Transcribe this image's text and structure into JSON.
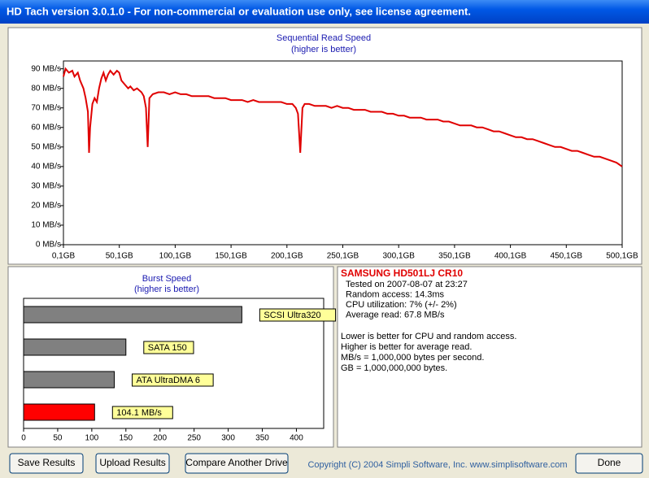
{
  "window": {
    "title": "HD Tach version 3.0.1.0  - For non-commercial or evaluation use only, see license agreement."
  },
  "chart_data": [
    {
      "type": "line",
      "title": "Sequential Read Speed",
      "subtitle": "(higher is better)",
      "x": [
        0.1,
        2,
        5,
        8,
        10,
        13,
        15,
        18,
        20,
        22,
        23,
        24,
        26,
        28,
        30,
        32,
        34,
        36,
        38,
        40,
        42,
        45,
        48,
        50,
        52,
        55,
        58,
        60,
        63,
        66,
        70,
        72,
        74,
        75.5,
        77,
        80,
        85,
        90,
        95,
        100,
        105,
        110,
        115,
        120,
        125,
        130,
        135,
        140,
        145,
        150,
        155,
        160,
        165,
        170,
        175,
        180,
        185,
        190,
        195,
        200,
        205,
        208,
        210,
        212,
        214,
        216,
        220,
        225,
        230,
        235,
        240,
        245,
        250,
        255,
        260,
        265,
        270,
        275,
        280,
        285,
        290,
        295,
        300,
        305,
        310,
        315,
        320,
        325,
        330,
        335,
        340,
        345,
        350,
        355,
        360,
        365,
        370,
        375,
        380,
        385,
        390,
        395,
        400,
        405,
        410,
        415,
        420,
        425,
        430,
        435,
        440,
        445,
        450,
        455,
        460,
        465,
        470,
        475,
        480,
        485,
        490,
        495,
        500
      ],
      "series": [
        {
          "name": "Sequential Read Speed",
          "color": "#e00000",
          "values": [
            86,
            90,
            88,
            89,
            86,
            88,
            84,
            80,
            75,
            68,
            47,
            60,
            72,
            75,
            73,
            80,
            85,
            88,
            84,
            87,
            89,
            87,
            89,
            88,
            84,
            82,
            80,
            81,
            79,
            80,
            78,
            76,
            70,
            50,
            75,
            77,
            78,
            78,
            77,
            78,
            77,
            77,
            76,
            76,
            76,
            76,
            75,
            75,
            75,
            74,
            74,
            74,
            73,
            74,
            73,
            73,
            73,
            73,
            73,
            72,
            72,
            70,
            67,
            47,
            70,
            72,
            72,
            71,
            71,
            71,
            70,
            71,
            70,
            70,
            69,
            69,
            69,
            68,
            68,
            68,
            67,
            67,
            66,
            66,
            65,
            65,
            65,
            64,
            64,
            64,
            63,
            63,
            62,
            61,
            61,
            61,
            60,
            60,
            59,
            58,
            58,
            57,
            56,
            55,
            55,
            54,
            54,
            53,
            52,
            51,
            50,
            50,
            49,
            48,
            48,
            47,
            46,
            45,
            45,
            44,
            43,
            42,
            40
          ]
        }
      ],
      "xlim": [
        0.1,
        500.1
      ],
      "xticks": [
        {
          "value": 0.1,
          "label": "0,1GB"
        },
        {
          "value": 50.1,
          "label": "50,1GB"
        },
        {
          "value": 100.1,
          "label": "100,1GB"
        },
        {
          "value": 150.1,
          "label": "150,1GB"
        },
        {
          "value": 200.1,
          "label": "200,1GB"
        },
        {
          "value": 250.1,
          "label": "250,1GB"
        },
        {
          "value": 300.1,
          "label": "300,1GB"
        },
        {
          "value": 350.1,
          "label": "350,1GB"
        },
        {
          "value": 400.1,
          "label": "400,1GB"
        },
        {
          "value": 450.1,
          "label": "450,1GB"
        },
        {
          "value": 500.1,
          "label": "500,1GB"
        }
      ],
      "ylim": [
        0,
        94
      ],
      "yticks": [
        {
          "value": 0,
          "label": "0 MB/s"
        },
        {
          "value": 10,
          "label": "10 MB/s"
        },
        {
          "value": 20,
          "label": "20 MB/s"
        },
        {
          "value": 30,
          "label": "30 MB/s"
        },
        {
          "value": 40,
          "label": "40 MB/s"
        },
        {
          "value": 50,
          "label": "50 MB/s"
        },
        {
          "value": 60,
          "label": "60 MB/s"
        },
        {
          "value": 70,
          "label": "70 MB/s"
        },
        {
          "value": 80,
          "label": "80 MB/s"
        },
        {
          "value": 90,
          "label": "90 MB/s"
        }
      ]
    },
    {
      "type": "hbar",
      "title": "Burst Speed",
      "subtitle": "(higher is better)",
      "categories": [
        "SCSI Ultra320",
        "SATA 150",
        "ATA UltraDMA 6",
        null
      ],
      "values": [
        320,
        150,
        133,
        104.1
      ],
      "value_labels": [
        null,
        null,
        null,
        "104.1 MB/s"
      ],
      "colors": [
        "#808080",
        "#808080",
        "#808080",
        "#ff0000"
      ],
      "xlim": [
        0,
        440
      ],
      "xticks": [
        0,
        50,
        100,
        150,
        200,
        250,
        300,
        350,
        400
      ]
    }
  ],
  "info": {
    "drive": "SAMSUNG HD501LJ CR10",
    "lines": [
      "Tested on 2007-08-07 at 23:27",
      "Random access: 14.3ms",
      "CPU utilization: 7% (+/- 2%)",
      "Average read: 67.8 MB/s"
    ],
    "notes": [
      "Lower is better for CPU and random access.",
      "Higher is better for average read.",
      "MB/s = 1,000,000 bytes per second.",
      "GB = 1,000,000,000 bytes."
    ]
  },
  "buttons": [
    "Save Results",
    "Upload Results",
    "Compare Another Drive",
    "Done"
  ],
  "copyright": "Copyright (C) 2004 Simpli Software, Inc. www.simplisoftware.com"
}
